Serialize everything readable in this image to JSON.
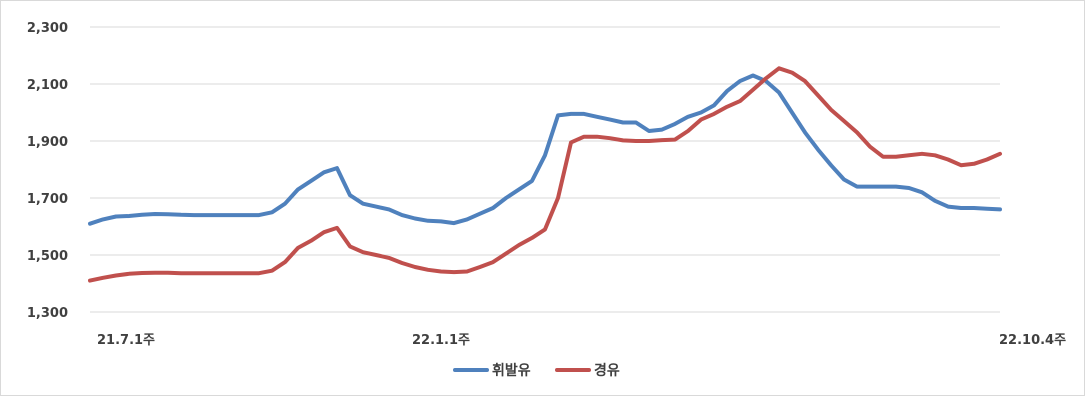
{
  "chart_data": {
    "type": "line",
    "title": "",
    "xlabel": "",
    "ylabel": "",
    "ylim": [
      1300,
      2300
    ],
    "yticks": [
      1300,
      1500,
      1700,
      1900,
      2100,
      2300
    ],
    "ytick_labels": [
      "1,300",
      "1,500",
      "1,700",
      "1,900",
      "2,100",
      "2,300"
    ],
    "x_tick_labels": [
      {
        "index": 0,
        "label": "21.7.1주"
      },
      {
        "index": 27,
        "label": "22.1.1주"
      },
      {
        "index": 70,
        "label": "22.10.4주"
      }
    ],
    "grid": true,
    "legend": "bottom-center",
    "series": [
      {
        "name": "휘발유",
        "color": "#4f81bd",
        "values": [
          1610,
          1625,
          1635,
          1637,
          1641,
          1644,
          1643,
          1641,
          1640,
          1640,
          1640,
          1640,
          1640,
          1640,
          1650,
          1680,
          1730,
          1760,
          1790,
          1805,
          1710,
          1680,
          1670,
          1660,
          1640,
          1628,
          1620,
          1618,
          1612,
          1625,
          1645,
          1665,
          1700,
          1730,
          1760,
          1850,
          1990,
          1995,
          1995,
          1985,
          1975,
          1965,
          1965,
          1935,
          1940,
          1960,
          1985,
          2000,
          2025,
          2075,
          2110,
          2130,
          2110,
          2070,
          2000,
          1930,
          1870,
          1815,
          1765,
          1740,
          1740,
          1740,
          1740,
          1735,
          1720,
          1690,
          1670,
          1665,
          1665,
          1662,
          1660
        ]
      },
      {
        "name": "경유",
        "color": "#c0504d",
        "values": [
          1410,
          1420,
          1428,
          1434,
          1437,
          1438,
          1438,
          1436,
          1436,
          1436,
          1436,
          1436,
          1436,
          1436,
          1445,
          1475,
          1525,
          1550,
          1580,
          1595,
          1530,
          1510,
          1500,
          1490,
          1472,
          1458,
          1448,
          1442,
          1440,
          1442,
          1458,
          1475,
          1505,
          1535,
          1560,
          1590,
          1700,
          1895,
          1915,
          1915,
          1910,
          1902,
          1900,
          1900,
          1903,
          1905,
          1935,
          1975,
          1995,
          2020,
          2040,
          2080,
          2120,
          2155,
          2140,
          2110,
          2060,
          2010,
          1970,
          1930,
          1880,
          1845,
          1845,
          1850,
          1855,
          1850,
          1835,
          1815,
          1820,
          1835,
          1855
        ]
      }
    ]
  }
}
